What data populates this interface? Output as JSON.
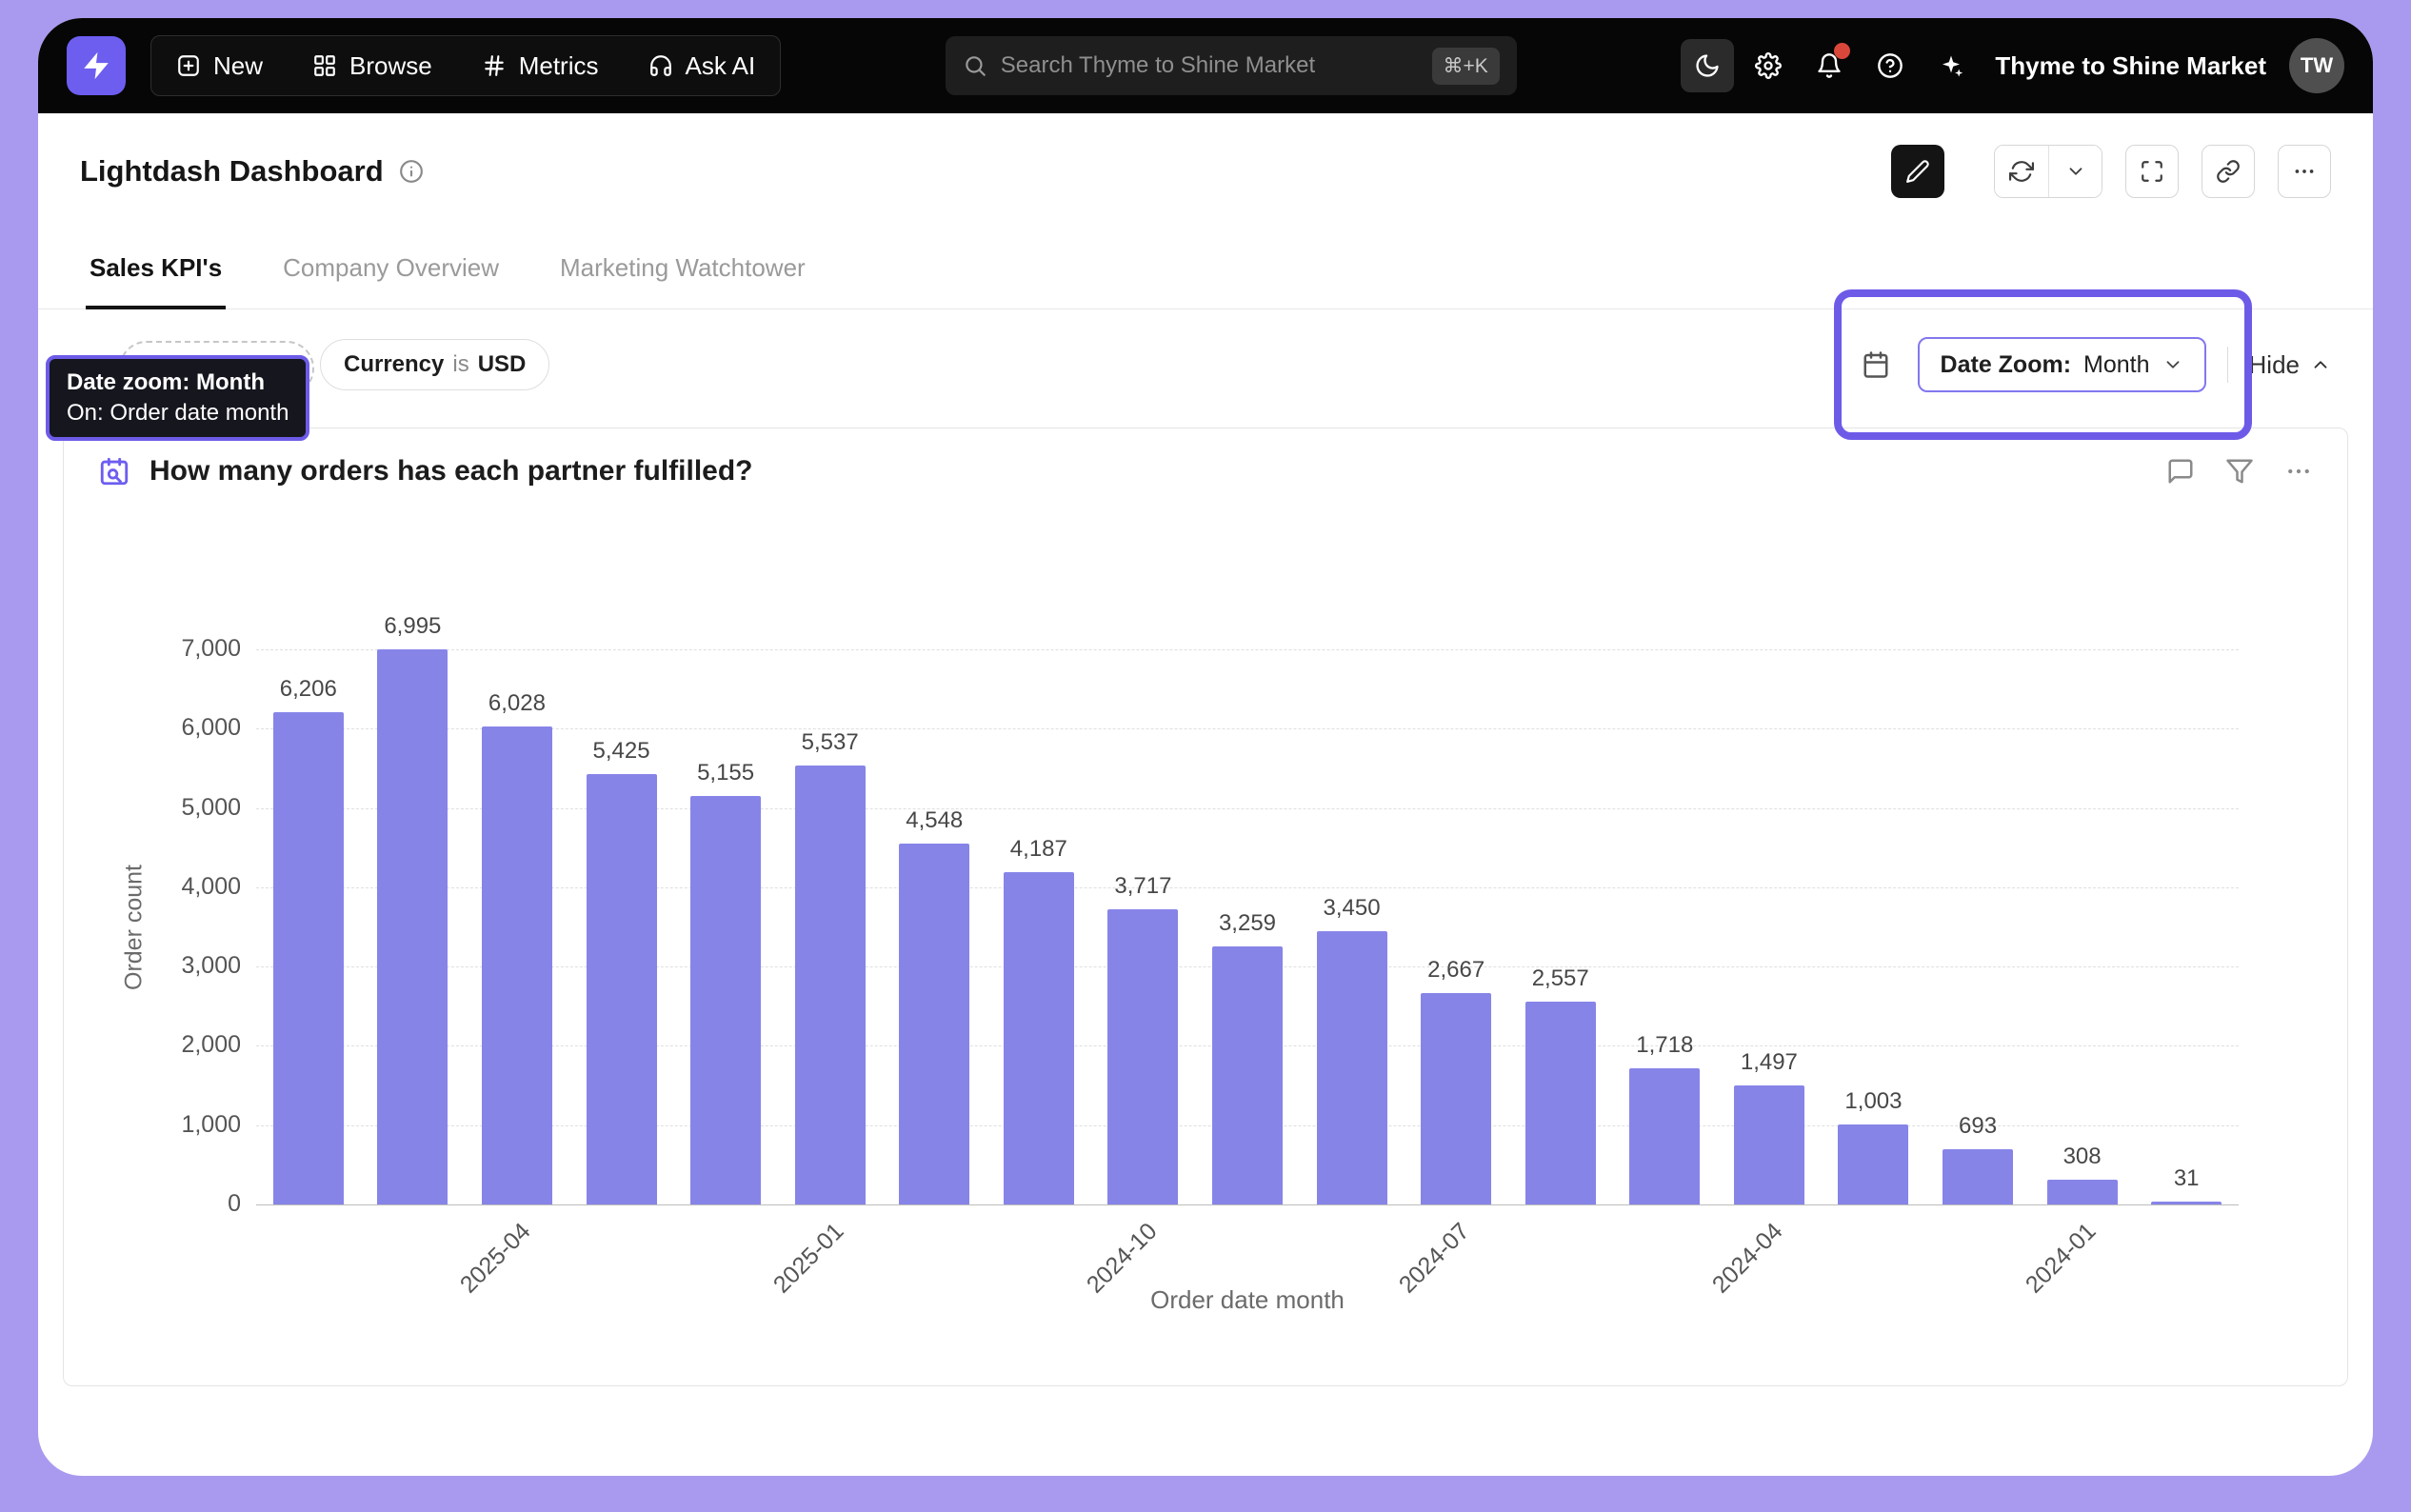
{
  "theme": {
    "accent": "#6d5be8",
    "bar_color": "#8784e8",
    "background": "#a99af0"
  },
  "navbar": {
    "items": [
      {
        "label": "New",
        "icon": "plus-square-icon"
      },
      {
        "label": "Browse",
        "icon": "grid-icon"
      },
      {
        "label": "Metrics",
        "icon": "hash-icon"
      },
      {
        "label": "Ask AI",
        "icon": "headset-icon"
      }
    ],
    "search": {
      "placeholder": "Search Thyme to Shine Market",
      "shortcut": "⌘+K"
    },
    "workspace_name": "Thyme to Shine Market",
    "avatar_initials": "TW"
  },
  "header": {
    "title": "Lightdash Dashboard"
  },
  "tabs": [
    {
      "label": "Sales KPI's",
      "active": true
    },
    {
      "label": "Company Overview",
      "active": false
    },
    {
      "label": "Marketing Watchtower",
      "active": false
    }
  ],
  "filter_bar": {
    "tooltip": {
      "line1": "Date zoom: Month",
      "line2": "On: Order date month"
    },
    "currency_filter": {
      "field": "Currency",
      "operator": "is",
      "value": "USD"
    },
    "date_zoom": {
      "label": "Date Zoom:",
      "value": "Month"
    },
    "hide_label": "Hide"
  },
  "chart_card": {
    "title": "How many orders has each partner fulfilled?"
  },
  "chart_data": {
    "type": "bar",
    "title": "How many orders has each partner fulfilled?",
    "xlabel": "Order date month",
    "ylabel": "Order count",
    "ylim": [
      0,
      7000
    ],
    "y_ticks": [
      0,
      1000,
      2000,
      3000,
      4000,
      5000,
      6000,
      7000
    ],
    "y_tick_labels": [
      "0",
      "1,000",
      "2,000",
      "3,000",
      "4,000",
      "5,000",
      "6,000",
      "7,000"
    ],
    "values": [
      6206,
      6995,
      6028,
      5425,
      5155,
      5537,
      4548,
      4187,
      3717,
      3259,
      3450,
      2667,
      2557,
      1718,
      1497,
      1003,
      693,
      308,
      31
    ],
    "data_labels": [
      "6,206",
      "6,995",
      "6,028",
      "5,425",
      "5,155",
      "5,537",
      "4,548",
      "4,187",
      "3,717",
      "3,259",
      "3,450",
      "2,667",
      "2,557",
      "1,718",
      "1,497",
      "1,003",
      "693",
      "308",
      "31"
    ],
    "x_tick_labels": [
      {
        "index": 2,
        "label": "2025-04"
      },
      {
        "index": 5,
        "label": "2025-01"
      },
      {
        "index": 8,
        "label": "2024-10"
      },
      {
        "index": 11,
        "label": "2024-07"
      },
      {
        "index": 14,
        "label": "2024-04"
      },
      {
        "index": 17,
        "label": "2024-01"
      }
    ],
    "bar_color": "#8784e8",
    "grid": "horizontal-dashed",
    "legend": "none"
  }
}
